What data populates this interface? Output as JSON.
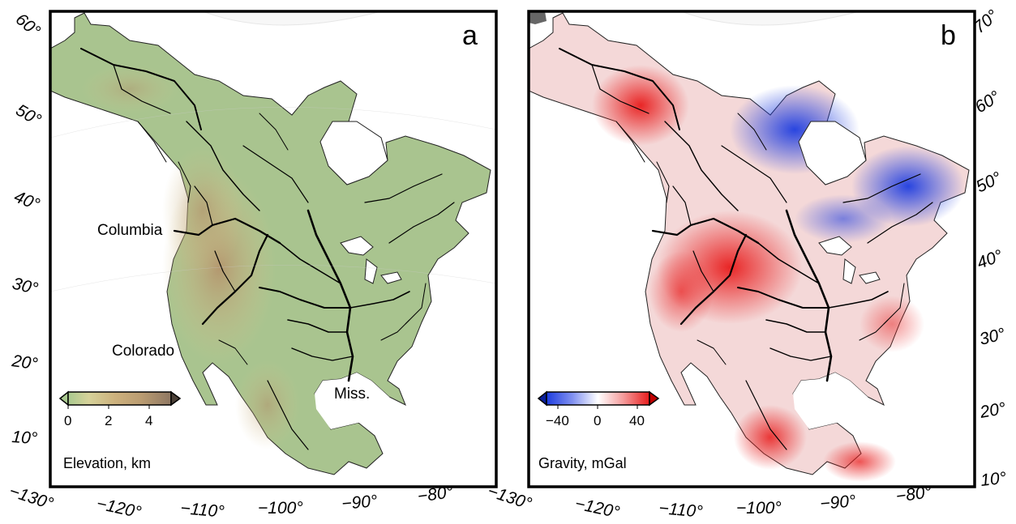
{
  "panels": [
    {
      "letter": "a",
      "colorbar": {
        "title": "Elevation, km",
        "ticks": [
          "0",
          "2",
          "4"
        ],
        "colors": [
          "#a9c98f",
          "#d6d29a",
          "#cdb27e",
          "#bb9d72",
          "#a4886c",
          "#8f7863"
        ]
      },
      "rivers": [
        "Columbia",
        "Colorado",
        "Miss."
      ],
      "lat_labels": [
        "60°",
        "50°",
        "40°",
        "30°",
        "20°",
        "10°"
      ],
      "lon_labels": [
        "−130°",
        "−120°",
        "−110°",
        "−100°",
        "−90°",
        "−80°"
      ],
      "land_color": "#a9c48f"
    },
    {
      "letter": "b",
      "colorbar": {
        "title": "Gravity, mGal",
        "ticks": [
          "−40",
          "0",
          "40"
        ],
        "colors": [
          "#1e3de0",
          "#8090f0",
          "#ffffff",
          "#f59a9a",
          "#e81c1c"
        ]
      },
      "lat_labels": [
        "70°",
        "60°",
        "50°",
        "40°",
        "30°",
        "20°",
        "10°"
      ],
      "lon_labels": [
        "−130°",
        "−120°",
        "−110°",
        "−100°",
        "−90°",
        "−80°"
      ],
      "land_color": "#f3c6c6"
    }
  ]
}
